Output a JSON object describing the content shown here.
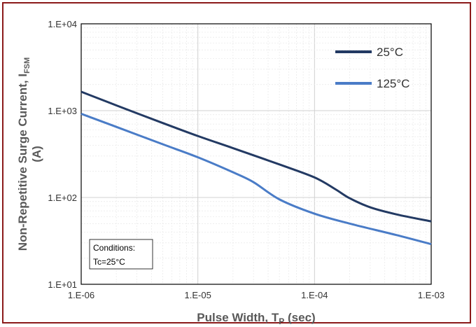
{
  "chart_data": {
    "type": "line",
    "title": "",
    "xlabel": "Pulse Width, T",
    "xlabel_sub": "P",
    "xlabel_tail": " (sec)",
    "ylabel": "Non-Repetitive Surge Current, I",
    "ylabel_sub": "FSM",
    "ylabel_line2": "(A)",
    "x_scale": "log",
    "y_scale": "log",
    "xlim": [
      1e-06,
      0.001
    ],
    "ylim": [
      10,
      10000
    ],
    "x_ticks": [
      {
        "value": 1e-06,
        "label": "1.E-06"
      },
      {
        "value": 1e-05,
        "label": "1.E-05"
      },
      {
        "value": 0.0001,
        "label": "1.E-04"
      },
      {
        "value": 0.001,
        "label": "1.E-03"
      }
    ],
    "y_ticks": [
      {
        "value": 10,
        "label": "1.E+01"
      },
      {
        "value": 100,
        "label": "1.E+02"
      },
      {
        "value": 1000,
        "label": "1.E+03"
      },
      {
        "value": 10000,
        "label": "1.E+04"
      }
    ],
    "grid": true,
    "legend_position": "top-right",
    "series": [
      {
        "name": "25°C",
        "color": "#233a63",
        "x": [
          1e-06,
          2e-06,
          5e-06,
          1e-05,
          2e-05,
          5e-05,
          0.0001,
          0.00015,
          0.0002,
          0.0003,
          0.0005,
          0.001
        ],
        "y": [
          1650,
          1150,
          720,
          510,
          370,
          240,
          170,
          125,
          98,
          77,
          64,
          53
        ]
      },
      {
        "name": "125°C",
        "color": "#4a7cc7",
        "x": [
          1e-06,
          2e-06,
          5e-06,
          1e-05,
          2e-05,
          3e-05,
          5e-05,
          0.0001,
          0.0002,
          0.0005,
          0.001
        ],
        "y": [
          920,
          650,
          410,
          290,
          195,
          150,
          95,
          65,
          50,
          37,
          29
        ]
      }
    ],
    "annotation": {
      "line1": "Conditions:",
      "line2": "Tc=25°C"
    }
  }
}
